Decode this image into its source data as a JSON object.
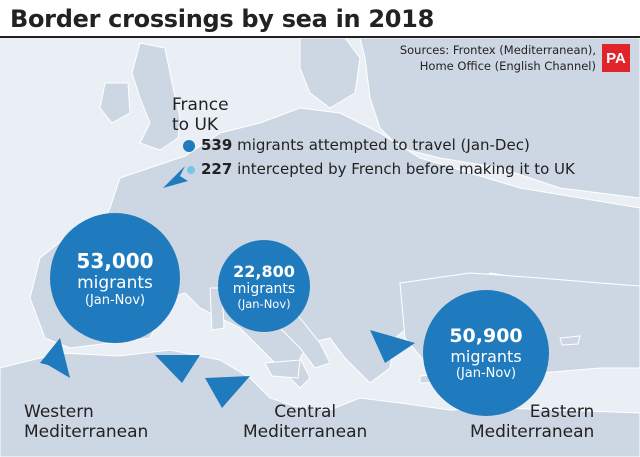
{
  "title": "Border crossings by sea in 2018",
  "sources": {
    "line1": "Sources: Frontex (Mediterranean),",
    "line2": "Home Office (English Channel)"
  },
  "logo": "PA",
  "channel": {
    "title_line1": "France",
    "title_line2": "to UK",
    "stats": [
      {
        "value": "539",
        "text": "migrants attempted to travel (Jan-Dec)",
        "color": "#1f7bbd"
      },
      {
        "value": "227",
        "text": "intercepted by French before making it to UK",
        "color": "#7cc3e6"
      }
    ]
  },
  "routes": [
    {
      "number": "53,000",
      "unit": "migrants",
      "period": "(Jan-Nov)",
      "label_line1": "Western",
      "label_line2": "Mediterranean"
    },
    {
      "number": "22,800",
      "unit": "migrants",
      "period": "(Jan-Nov)",
      "label_line1": "Central",
      "label_line2": "Mediterranean"
    },
    {
      "number": "50,900",
      "unit": "migrants",
      "period": "(Jan-Nov)",
      "label_line1": "Eastern",
      "label_line2": "Mediterranean"
    }
  ],
  "colors": {
    "bubble": "#1f7bbd",
    "land": "#cdd7e3",
    "sea": "#e9eff5",
    "logo": "#e0242b"
  }
}
